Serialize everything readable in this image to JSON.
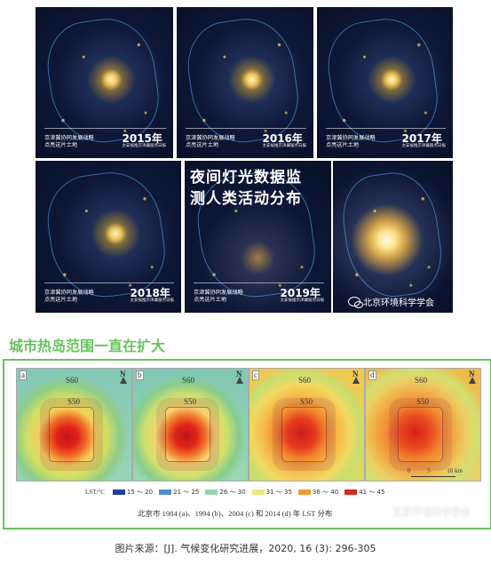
{
  "night_panels": [
    {
      "year": "2015年",
      "line1": "京津冀协同发展战略",
      "line2": "点亮这片土地",
      "sub": "太安候推京津冀服务日报"
    },
    {
      "year": "2016年",
      "line1": "京津冀协同发展战略",
      "line2": "点亮这片土地",
      "sub": "太安候推京津冀服务日报"
    },
    {
      "year": "2017年",
      "line1": "京津冀协同发展战略",
      "line2": "点亮这片土地",
      "sub": "太安候推京津冀服务日报"
    },
    {
      "year": "2018年",
      "line1": "京津冀协同发展战略",
      "line2": "点亮这片土地",
      "sub": "太安候推京津冀服务日报"
    },
    {
      "year": "2019年",
      "line1": "京津冀协同发展战略",
      "line2": "点亮这片土地",
      "sub": "太安候推京津冀服务日报"
    }
  ],
  "headline": {
    "line1": "夜间灯光数据监",
    "line2": "测人类活动分布"
  },
  "watermark": "北京环境科学学会",
  "heat_section_title": "城市热岛范围一直在扩大",
  "heat_panels": [
    {
      "letter": "a",
      "s60": "S60",
      "s50": "S50"
    },
    {
      "letter": "b",
      "s60": "S60",
      "s50": "S50"
    },
    {
      "letter": "c",
      "s60": "S60",
      "s50": "S50"
    },
    {
      "letter": "d",
      "s60": "S60",
      "s50": "S50"
    }
  ],
  "legend": {
    "title": "LST/°C",
    "items": [
      {
        "label": "15 ～ 20",
        "color": "#1f3f9b"
      },
      {
        "label": "21 ～ 25",
        "color": "#4f8fcb"
      },
      {
        "label": "26 ～ 30",
        "color": "#98d3b0"
      },
      {
        "label": "31 ～ 35",
        "color": "#efe676"
      },
      {
        "label": "36 ～ 40",
        "color": "#f09a34"
      },
      {
        "label": "41 ～ 45",
        "color": "#d72a20"
      }
    ]
  },
  "scale": {
    "n0": "0",
    "n5": "5",
    "n10": "10 km"
  },
  "heat_caption": "北京市 1984 (a)、1994 (b)、2004 (c) 和 2014 (d) 年 LST 分布",
  "source": "图片来源：[J]. 气候变化研究进展，2020, 16 (3): 296-305"
}
